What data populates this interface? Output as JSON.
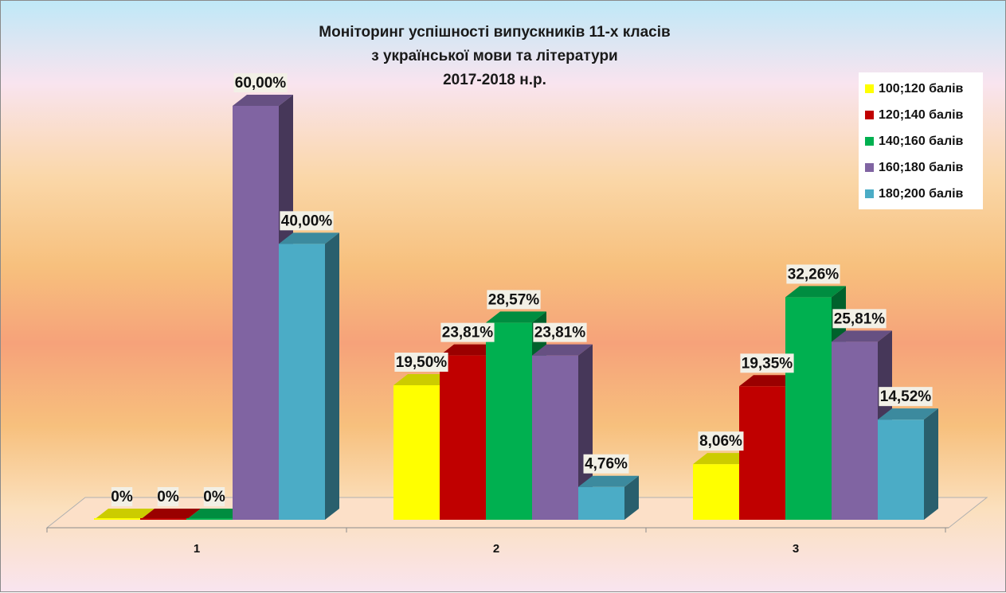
{
  "chart_data": {
    "type": "bar",
    "title_lines": [
      "Моніторинг успішності випускників 11-х класів",
      "з української мови та літератури",
      "2017-2018 н.р."
    ],
    "categories": [
      "1",
      "2",
      "3"
    ],
    "ylim": [
      0,
      65
    ],
    "grid": false,
    "legend_position": "top-right",
    "series": [
      {
        "name": "100;120 балів",
        "color": "#ffff00",
        "values": [
          0,
          19.5,
          8.06
        ],
        "labels": [
          "0%",
          "19,50%",
          "8,06%"
        ]
      },
      {
        "name": "120;140 балів",
        "color": "#c00000",
        "values": [
          0,
          23.81,
          19.35
        ],
        "labels": [
          "0%",
          "23,81%",
          "19,35%"
        ]
      },
      {
        "name": "140;160 балів",
        "color": "#00b050",
        "values": [
          0,
          28.57,
          32.26
        ],
        "labels": [
          "0%",
          "28,57%",
          "32,26%"
        ]
      },
      {
        "name": "160;180 балів",
        "color": "#8064a2",
        "values": [
          60,
          23.81,
          25.81
        ],
        "labels": [
          "60,00%",
          "23,81%",
          "25,81%"
        ]
      },
      {
        "name": "180;200 балів",
        "color": "#4bacc6",
        "values": [
          40,
          4.76,
          14.52
        ],
        "labels": [
          "40,00%",
          "4,76%",
          "14,52%"
        ]
      }
    ]
  }
}
